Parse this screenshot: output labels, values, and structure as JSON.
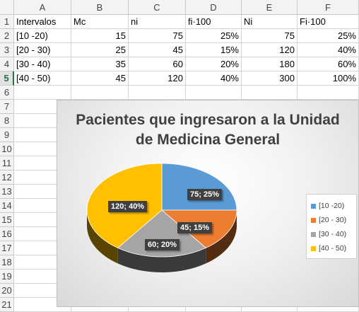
{
  "columns": [
    "A",
    "B",
    "C",
    "D",
    "E",
    "F"
  ],
  "rows": [
    "1",
    "2",
    "3",
    "4",
    "5",
    "6",
    "7",
    "8",
    "9",
    "10",
    "11",
    "12",
    "13",
    "14",
    "15",
    "16",
    "17",
    "18",
    "19",
    "20",
    "21"
  ],
  "active_row": "5",
  "table": {
    "headers": [
      "Intervalos",
      "Mc",
      "ni",
      "fi·100",
      "Ni",
      "Fi·100"
    ],
    "rows": [
      [
        "[10  -20)",
        "15",
        "75",
        "25%",
        "75",
        "25%"
      ],
      [
        "[20 - 30)",
        "25",
        "45",
        "15%",
        "120",
        "40%"
      ],
      [
        "[30 - 40)",
        "35",
        "60",
        "20%",
        "180",
        "60%"
      ],
      [
        "[40 - 50)",
        "45",
        "120",
        "40%",
        "300",
        "100%"
      ]
    ]
  },
  "chart_data": {
    "type": "pie",
    "title_lines": [
      "Pacientes que ingresaron a la Unidad",
      "de Medicina General"
    ],
    "categories": [
      "[10  -20)",
      "[20 - 30)",
      "[30 - 40)",
      "[40 - 50)"
    ],
    "values": [
      75,
      45,
      60,
      120
    ],
    "percents": [
      "25%",
      "15%",
      "20%",
      "40%"
    ],
    "data_labels": [
      "75; 25%",
      "45; 15%",
      "60; 20%",
      "120; 40%"
    ],
    "colors": [
      "#5b9bd5",
      "#ed7d31",
      "#a5a5a5",
      "#ffc000"
    ],
    "legend_position": "right",
    "style": "3d"
  }
}
